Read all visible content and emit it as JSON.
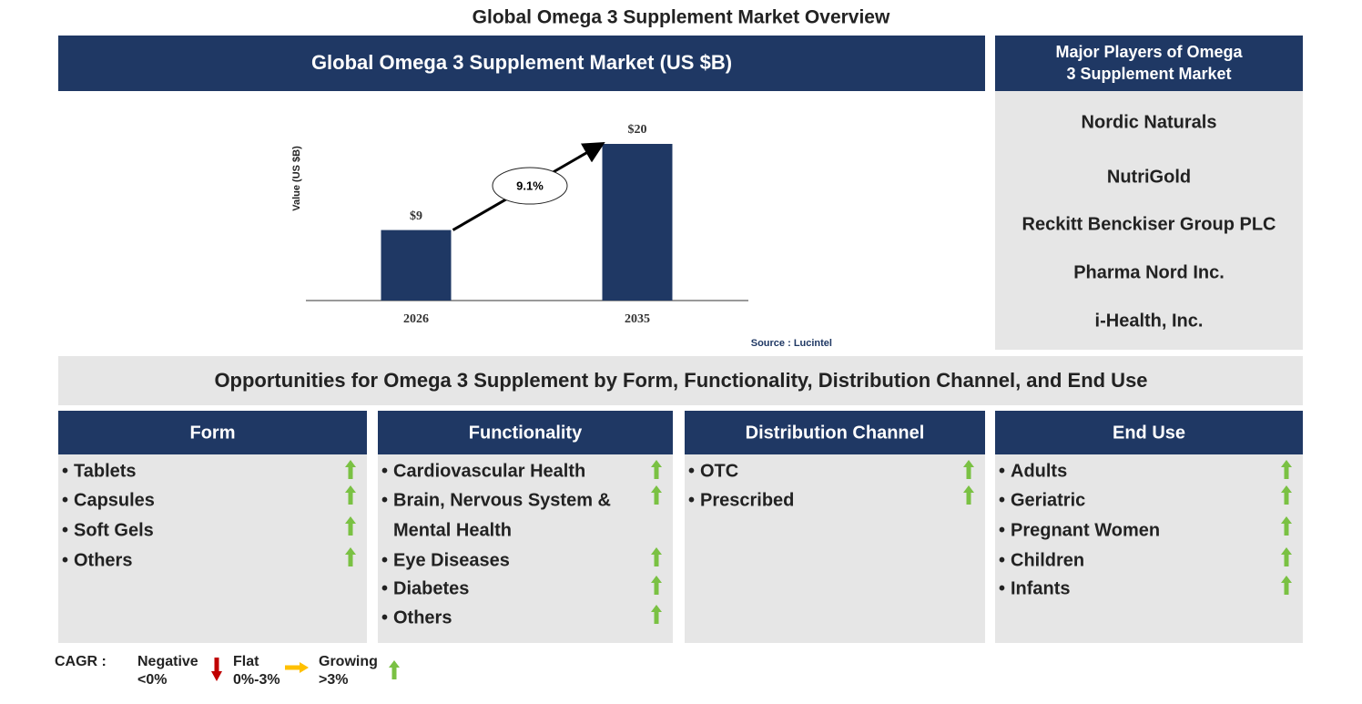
{
  "page_title": "Global Omega 3 Supplement Market Overview",
  "chart_data": {
    "type": "bar",
    "title": "Global Omega 3 Supplement Market (US $B)",
    "y_label": "Value (US $B)",
    "categories": [
      "2026",
      "2035"
    ],
    "values": [
      9,
      20
    ],
    "value_labels": [
      "$9",
      "$20"
    ],
    "color": "#1f3864",
    "ylim": [
      0,
      20
    ],
    "annotation": "9.1%",
    "source": "Source : Lucintel"
  },
  "players": {
    "title": "Major Players of Omega 3 Supplement Market",
    "items": [
      "Nordic Naturals",
      "NutriGold",
      "Reckitt Benckiser Group PLC",
      "Pharma Nord Inc.",
      "i-Health, Inc."
    ]
  },
  "opportunities": {
    "title": "Opportunities for Omega 3 Supplement by Form, Functionality, Distribution Channel, and End Use",
    "columns": [
      {
        "title": "Form",
        "items": [
          [
            "Tablets"
          ],
          [
            "Capsules"
          ],
          [
            "Soft Gels"
          ],
          [
            "Others"
          ]
        ]
      },
      {
        "title": "Functionality",
        "items": [
          [
            "Cardiovascular Health"
          ],
          [
            "Brain, Nervous System &",
            "Mental Health"
          ],
          [
            "Eye Diseases"
          ],
          [
            "Diabetes"
          ],
          [
            "Others"
          ]
        ]
      },
      {
        "title": "Distribution Channel",
        "items": [
          [
            "OTC"
          ],
          [
            "Prescribed"
          ]
        ]
      },
      {
        "title": "End Use",
        "items": [
          [
            "Adults"
          ],
          [
            "Geriatric"
          ],
          [
            "Pregnant Women"
          ],
          [
            "Children"
          ],
          [
            "Infants"
          ]
        ]
      }
    ]
  },
  "legend": {
    "title": "CAGR :",
    "negative": [
      "Negative",
      "<0%"
    ],
    "flat": [
      "Flat",
      "0%-3%"
    ],
    "growing": [
      "Growing",
      ">3%"
    ]
  }
}
